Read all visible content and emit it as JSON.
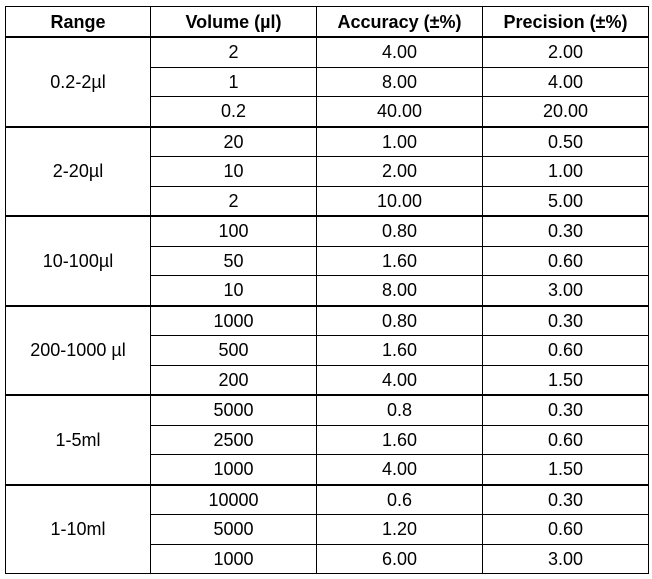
{
  "headers": [
    "Range",
    "Volume (µl)",
    "Accuracy (±%)",
    "Precision (±%)"
  ],
  "groups": [
    {
      "range": "0.2-2µl",
      "rows": [
        [
          "2",
          "4.00",
          "2.00"
        ],
        [
          "1",
          "8.00",
          "4.00"
        ],
        [
          "0.2",
          "40.00",
          "20.00"
        ]
      ]
    },
    {
      "range": "2-20µl",
      "rows": [
        [
          "20",
          "1.00",
          "0.50"
        ],
        [
          "10",
          "2.00",
          "1.00"
        ],
        [
          "2",
          "10.00",
          "5.00"
        ]
      ]
    },
    {
      "range": "10-100µl",
      "rows": [
        [
          "100",
          "0.80",
          "0.30"
        ],
        [
          "50",
          "1.60",
          "0.60"
        ],
        [
          "10",
          "8.00",
          "3.00"
        ]
      ]
    },
    {
      "range": "200-1000 µl",
      "rows": [
        [
          "1000",
          "0.80",
          "0.30"
        ],
        [
          "500",
          "1.60",
          "0.60"
        ],
        [
          "200",
          "4.00",
          "1.50"
        ]
      ]
    },
    {
      "range": "1-5ml",
      "rows": [
        [
          "5000",
          "0.8",
          "0.30"
        ],
        [
          "2500",
          "1.60",
          "0.60"
        ],
        [
          "1000",
          "4.00",
          "1.50"
        ]
      ]
    },
    {
      "range": "1-10ml",
      "rows": [
        [
          "10000",
          "0.6",
          "0.30"
        ],
        [
          "5000",
          "1.20",
          "0.60"
        ],
        [
          "1000",
          "6.00",
          "3.00"
        ]
      ]
    }
  ]
}
